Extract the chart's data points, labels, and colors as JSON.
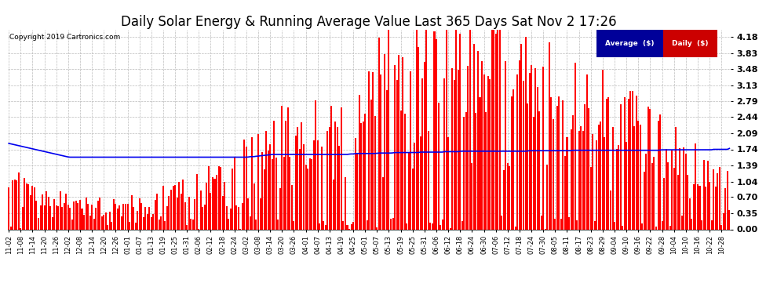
{
  "title": "Daily Solar Energy & Running Average Value Last 365 Days Sat Nov 2 17:26",
  "copyright": "Copyright 2019 Cartronics.com",
  "title_fontsize": 12,
  "bar_color": "#FF0000",
  "avg_line_color": "#0000EE",
  "bg_color": "#FFFFFF",
  "grid_color": "#BBBBBB",
  "yticks": [
    0.0,
    0.35,
    0.7,
    1.04,
    1.39,
    1.74,
    2.09,
    2.44,
    2.79,
    3.13,
    3.48,
    3.83,
    4.18
  ],
  "ymax": 4.35,
  "legend_avg_color": "#000099",
  "legend_daily_color": "#CC0000",
  "x_labels": [
    "11-02",
    "11-08",
    "11-14",
    "11-20",
    "11-26",
    "12-02",
    "12-08",
    "12-14",
    "12-20",
    "12-26",
    "01-01",
    "01-07",
    "01-13",
    "01-19",
    "01-25",
    "01-31",
    "02-06",
    "02-12",
    "02-18",
    "02-24",
    "03-02",
    "03-08",
    "03-14",
    "03-20",
    "03-26",
    "04-01",
    "04-07",
    "04-13",
    "04-19",
    "04-25",
    "05-01",
    "05-07",
    "05-13",
    "05-19",
    "05-25",
    "05-31",
    "06-06",
    "06-12",
    "06-18",
    "06-24",
    "06-30",
    "07-06",
    "07-12",
    "07-18",
    "07-24",
    "07-30",
    "08-05",
    "08-11",
    "08-17",
    "08-23",
    "08-29",
    "09-04",
    "09-10",
    "09-16",
    "09-22",
    "09-28",
    "10-04",
    "10-10",
    "10-16",
    "10-22",
    "10-28"
  ],
  "avg_line_pts": [
    1.87,
    1.86,
    1.85,
    1.84,
    1.83,
    1.82,
    1.81,
    1.8,
    1.79,
    1.78,
    1.77,
    1.76,
    1.75,
    1.74,
    1.73,
    1.72,
    1.71,
    1.7,
    1.69,
    1.68,
    1.67,
    1.66,
    1.65,
    1.64,
    1.63,
    1.62,
    1.61,
    1.6,
    1.59,
    1.58,
    1.57,
    1.57,
    1.57,
    1.57,
    1.57,
    1.57,
    1.57,
    1.57,
    1.57,
    1.57,
    1.57,
    1.57,
    1.57,
    1.57,
    1.57,
    1.57,
    1.57,
    1.57,
    1.57,
    1.57,
    1.57,
    1.57,
    1.57,
    1.57,
    1.57,
    1.57,
    1.57,
    1.57,
    1.57,
    1.57,
    1.57,
    1.57,
    1.57,
    1.57,
    1.57,
    1.57,
    1.57,
    1.57,
    1.57,
    1.57,
    1.57,
    1.57,
    1.57,
    1.57,
    1.57,
    1.57,
    1.57,
    1.57,
    1.57,
    1.57,
    1.57,
    1.57,
    1.57,
    1.57,
    1.57,
    1.57,
    1.57,
    1.57,
    1.57,
    1.57,
    1.57,
    1.57,
    1.57,
    1.57,
    1.57,
    1.57,
    1.57,
    1.57,
    1.57,
    1.57,
    1.57,
    1.57,
    1.57,
    1.57,
    1.57,
    1.57,
    1.57,
    1.57,
    1.57,
    1.57,
    1.57,
    1.57,
    1.57,
    1.57,
    1.57,
    1.57,
    1.57,
    1.57,
    1.57,
    1.57,
    1.58,
    1.58,
    1.58,
    1.59,
    1.59,
    1.6,
    1.6,
    1.61,
    1.61,
    1.62,
    1.62,
    1.63,
    1.63,
    1.63,
    1.63,
    1.63,
    1.63,
    1.63,
    1.63,
    1.63,
    1.63,
    1.63,
    1.63,
    1.63,
    1.63,
    1.63,
    1.63,
    1.63,
    1.63,
    1.63,
    1.63,
    1.63,
    1.63,
    1.63,
    1.63,
    1.63,
    1.63,
    1.63,
    1.63,
    1.63,
    1.63,
    1.63,
    1.63,
    1.63,
    1.63,
    1.63,
    1.63,
    1.63,
    1.63,
    1.63,
    1.64,
    1.64,
    1.64,
    1.65,
    1.65,
    1.65,
    1.65,
    1.65,
    1.65,
    1.65,
    1.65,
    1.65,
    1.65,
    1.65,
    1.66,
    1.66,
    1.66,
    1.66,
    1.66,
    1.66,
    1.66,
    1.66,
    1.67,
    1.67,
    1.67,
    1.67,
    1.67,
    1.67,
    1.67,
    1.67,
    1.67,
    1.67,
    1.67,
    1.67,
    1.67,
    1.68,
    1.68,
    1.68,
    1.68,
    1.68,
    1.68,
    1.68,
    1.68,
    1.68,
    1.68,
    1.68,
    1.68,
    1.69,
    1.69,
    1.69,
    1.69,
    1.69,
    1.69,
    1.69,
    1.69,
    1.7,
    1.7,
    1.7,
    1.7,
    1.7,
    1.7,
    1.7,
    1.7,
    1.7,
    1.7,
    1.7,
    1.7,
    1.7,
    1.7,
    1.7,
    1.7,
    1.7,
    1.7,
    1.7,
    1.7,
    1.7,
    1.7,
    1.7,
    1.7,
    1.7,
    1.7,
    1.7,
    1.7,
    1.7,
    1.7,
    1.7,
    1.7,
    1.7,
    1.7,
    1.71,
    1.71,
    1.71,
    1.71,
    1.71,
    1.71,
    1.71,
    1.71,
    1.71,
    1.71,
    1.71,
    1.71,
    1.71,
    1.71,
    1.71,
    1.71,
    1.71,
    1.71,
    1.71,
    1.71,
    1.71,
    1.71,
    1.72,
    1.72,
    1.72,
    1.72,
    1.72,
    1.72,
    1.72,
    1.72,
    1.72,
    1.72,
    1.72,
    1.72,
    1.72,
    1.72,
    1.72,
    1.72,
    1.72,
    1.72,
    1.72,
    1.72,
    1.72,
    1.72,
    1.72,
    1.72,
    1.72,
    1.72,
    1.72,
    1.72,
    1.72,
    1.72,
    1.72,
    1.72,
    1.72,
    1.72,
    1.72,
    1.72,
    1.72,
    1.72,
    1.72,
    1.72,
    1.72,
    1.72,
    1.72,
    1.72,
    1.73,
    1.73,
    1.73,
    1.73,
    1.73,
    1.73,
    1.73,
    1.73,
    1.73,
    1.73,
    1.73,
    1.73,
    1.73,
    1.73,
    1.73,
    1.73,
    1.73,
    1.73,
    1.73,
    1.73,
    1.73,
    1.73,
    1.73,
    1.73,
    1.73,
    1.73,
    1.74,
    1.74,
    1.74,
    1.74,
    1.74,
    1.74,
    1.74,
    1.74,
    1.76
  ]
}
